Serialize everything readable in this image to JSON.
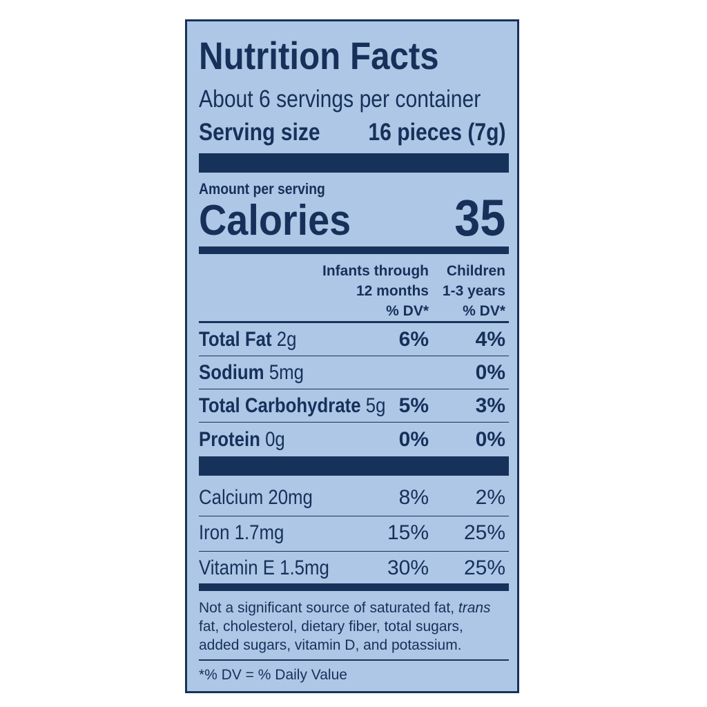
{
  "label": {
    "title": "Nutrition Facts",
    "servings_per_container": "About 6 servings per container",
    "serving_size_label": "Serving size",
    "serving_size_value": "16 pieces (7g)",
    "amount_per_serving": "Amount per serving",
    "calories_label": "Calories",
    "calories_value": "35",
    "columns": {
      "infants": [
        "Infants through",
        "12 months",
        "% DV*"
      ],
      "children": [
        "Children",
        "1-3 years",
        "% DV*"
      ]
    },
    "nutrients": [
      {
        "name": "Total Fat",
        "amount": "2g",
        "infants_dv": "6%",
        "children_dv": "4%"
      },
      {
        "name": "Sodium",
        "amount": "5mg",
        "infants_dv": "",
        "children_dv": "0%"
      },
      {
        "name": "Total Carbohydrate",
        "amount": "5g",
        "infants_dv": "5%",
        "children_dv": "3%"
      },
      {
        "name": "Protein",
        "amount": "0g",
        "infants_dv": "0%",
        "children_dv": "0%"
      }
    ],
    "vitamins": [
      {
        "name": "Calcium 20mg",
        "infants_dv": "8%",
        "children_dv": "2%"
      },
      {
        "name": "Iron 1.7mg",
        "infants_dv": "15%",
        "children_dv": "25%"
      },
      {
        "name": "Vitamin E 1.5mg",
        "infants_dv": "30%",
        "children_dv": "25%"
      }
    ],
    "footnote": {
      "line1_pre": "Not a significant source of saturated fat, ",
      "line1_italic": "trans",
      "line2": "fat, cholesterol, dietary fiber, total sugars,",
      "line3": "added sugars, vitamin D, and potassium."
    },
    "dv_note": "*% DV = % Daily Value",
    "colors": {
      "background": "#aec7e6",
      "ink": "#17325a"
    }
  }
}
